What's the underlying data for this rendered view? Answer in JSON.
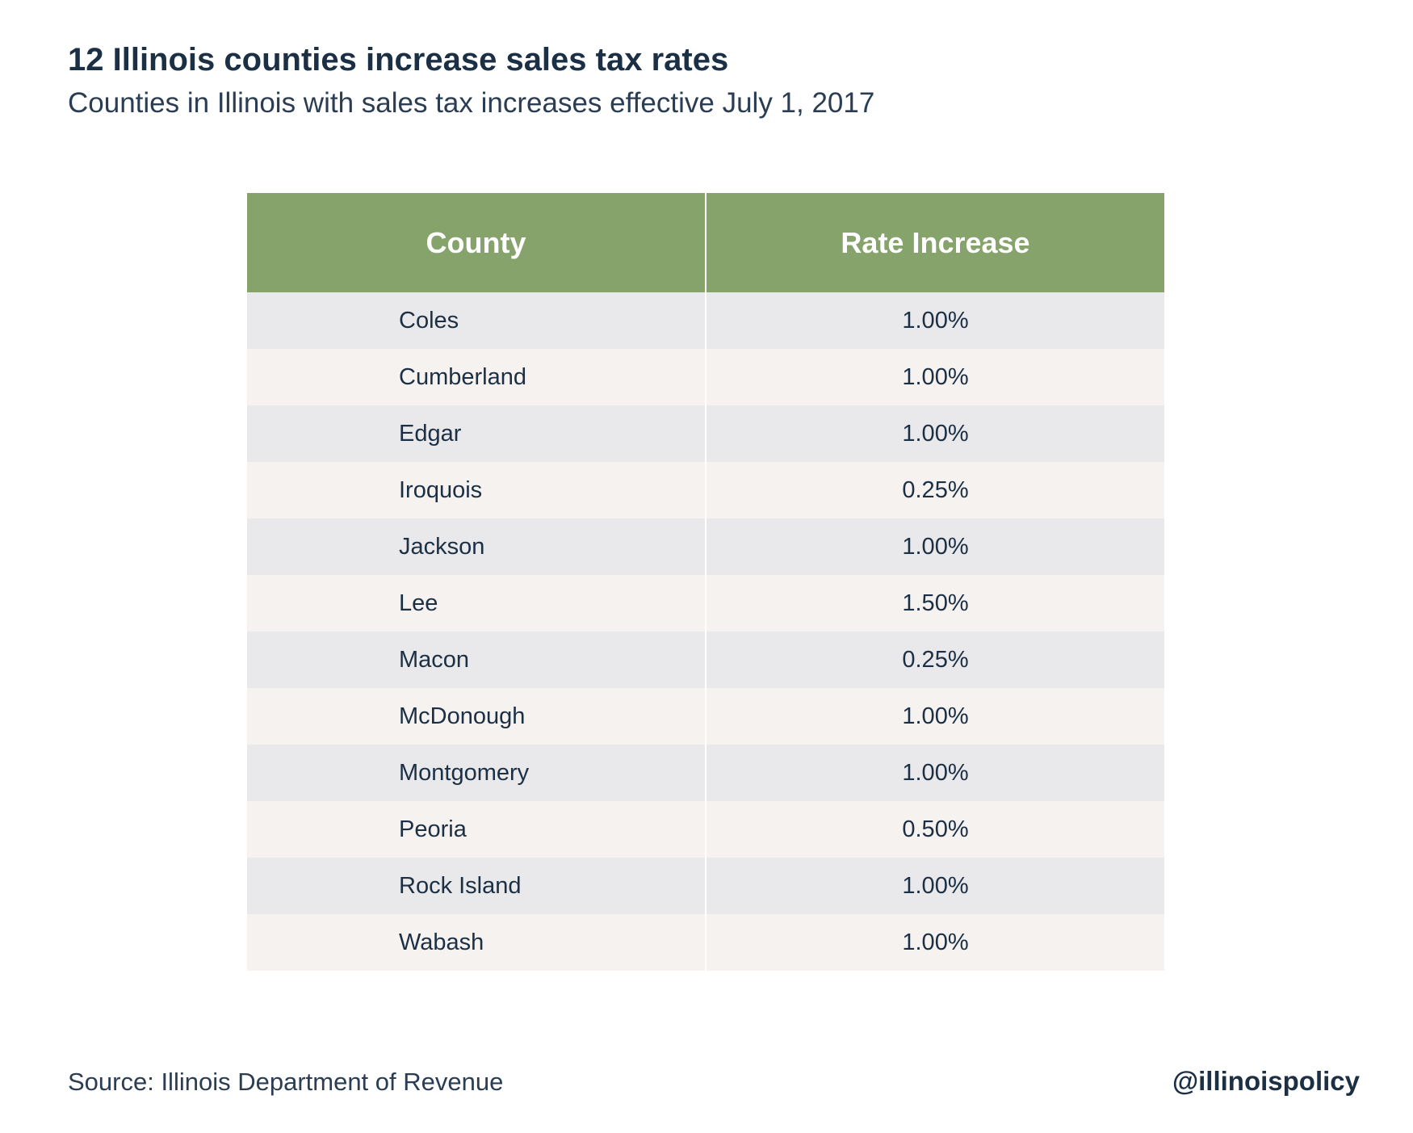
{
  "chart_data": {
    "type": "table",
    "title": "12 Illinois counties increase sales tax rates",
    "subtitle": "Counties in Illinois with sales tax increases effective July 1, 2017",
    "columns": [
      "County",
      "Rate Increase"
    ],
    "rows": [
      {
        "county": "Coles",
        "rate": "1.00%"
      },
      {
        "county": "Cumberland",
        "rate": "1.00%"
      },
      {
        "county": "Edgar",
        "rate": "1.00%"
      },
      {
        "county": "Iroquois",
        "rate": "0.25%"
      },
      {
        "county": "Jackson",
        "rate": "1.00%"
      },
      {
        "county": "Lee",
        "rate": "1.50%"
      },
      {
        "county": "Macon",
        "rate": "0.25%"
      },
      {
        "county": "McDonough",
        "rate": "1.00%"
      },
      {
        "county": "Montgomery",
        "rate": "1.00%"
      },
      {
        "county": "Peoria",
        "rate": "0.50%"
      },
      {
        "county": "Rock Island",
        "rate": "1.00%"
      },
      {
        "county": "Wabash",
        "rate": "1.00%"
      }
    ],
    "header_color": "#86a36b",
    "row_colors": [
      "#e9e8ea",
      "#f5f2f0"
    ]
  },
  "footer": {
    "source": "Source: Illinois Department of Revenue",
    "handle": "@illinoispolicy"
  }
}
